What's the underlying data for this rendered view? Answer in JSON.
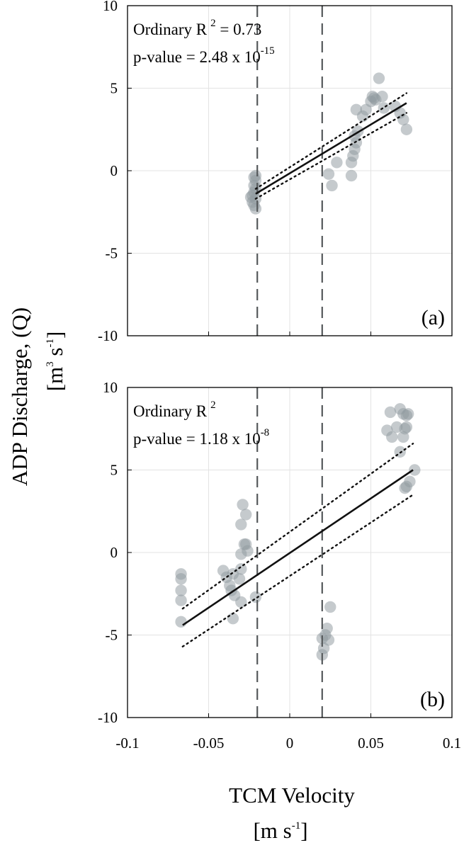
{
  "chart_data": {
    "type": "scatter",
    "xlabel": "TCM Velocity",
    "xlabel_units": "[m s-1]",
    "ylabel": "ADP Discharge, (Q)",
    "ylabel_units": "[m3 s-1]",
    "xlim": [
      -0.1,
      0.1
    ],
    "xticks": [
      -0.1,
      -0.05,
      0,
      0.05,
      0.1
    ],
    "xtick_labels": [
      "-0.1",
      "-0.05",
      "0",
      "0.05",
      "0.1"
    ],
    "panels": [
      {
        "panel_label": "(a)",
        "ylim": [
          -10,
          10
        ],
        "yticks": [
          -10,
          -5,
          0,
          5,
          10
        ],
        "ytick_labels": [
          "-10",
          "-5",
          "0",
          "5",
          "10"
        ],
        "grid": true,
        "annotation_line1": "Ordinary R",
        "annotation_line1_sup": "2",
        "annotation_line1_suffix": " = 0.73",
        "annotation_line2": "p-value = 2.48 x 10",
        "annotation_line2_sup": "-15",
        "vlines": [
          -0.02,
          0.02
        ],
        "fit": {
          "x": [
            -0.021,
            0.072
          ],
          "y": [
            -1.4,
            4.1
          ]
        },
        "ci_upper": {
          "x": [
            -0.021,
            0.072
          ],
          "y": [
            -1.1,
            4.7
          ]
        },
        "ci_lower": {
          "x": [
            -0.021,
            0.072
          ],
          "y": [
            -1.7,
            3.5
          ]
        },
        "points": [
          {
            "x": -0.022,
            "y": -0.4
          },
          {
            "x": -0.021,
            "y": -0.6
          },
          {
            "x": -0.022,
            "y": -0.9
          },
          {
            "x": -0.021,
            "y": -1.1
          },
          {
            "x": -0.022,
            "y": -1.3
          },
          {
            "x": -0.023,
            "y": -1.5
          },
          {
            "x": -0.021,
            "y": -1.7
          },
          {
            "x": -0.023,
            "y": -1.9
          },
          {
            "x": -0.022,
            "y": -2.1
          },
          {
            "x": -0.021,
            "y": -2.3
          },
          {
            "x": -0.024,
            "y": -1.6
          },
          {
            "x": -0.021,
            "y": -0.3
          },
          {
            "x": 0.024,
            "y": -0.2
          },
          {
            "x": 0.026,
            "y": -0.9
          },
          {
            "x": 0.029,
            "y": 0.5
          },
          {
            "x": 0.038,
            "y": -0.3
          },
          {
            "x": 0.038,
            "y": 0.5
          },
          {
            "x": 0.039,
            "y": 0.9
          },
          {
            "x": 0.04,
            "y": 1.3
          },
          {
            "x": 0.041,
            "y": 1.7
          },
          {
            "x": 0.04,
            "y": 2.1
          },
          {
            "x": 0.042,
            "y": 2.4
          },
          {
            "x": 0.041,
            "y": 3.7
          },
          {
            "x": 0.045,
            "y": 3.3
          },
          {
            "x": 0.047,
            "y": 3.7
          },
          {
            "x": 0.05,
            "y": 4.2
          },
          {
            "x": 0.052,
            "y": 4.4
          },
          {
            "x": 0.053,
            "y": 4.3
          },
          {
            "x": 0.055,
            "y": 5.6
          },
          {
            "x": 0.057,
            "y": 4.5
          },
          {
            "x": 0.058,
            "y": 3.8
          },
          {
            "x": 0.065,
            "y": 3.9
          },
          {
            "x": 0.068,
            "y": 3.5
          },
          {
            "x": 0.07,
            "y": 3.1
          },
          {
            "x": 0.072,
            "y": 2.5
          },
          {
            "x": 0.051,
            "y": 4.5
          }
        ]
      },
      {
        "panel_label": "(b)",
        "ylim": [
          -10,
          10
        ],
        "yticks": [
          -10,
          -5,
          0,
          5,
          10
        ],
        "ytick_labels": [
          "-10",
          "-5",
          "0",
          "5",
          "10"
        ],
        "grid": true,
        "annotation_line1": "Ordinary R",
        "annotation_line1_sup": "2",
        "annotation_line1_suffix": "",
        "annotation_line2": "p-value = 1.18 x 10",
        "annotation_line2_sup": "-8",
        "vlines": [
          -0.02,
          0.02
        ],
        "fit": {
          "x": [
            -0.066,
            0.076
          ],
          "y": [
            -4.4,
            5.0
          ]
        },
        "ci_upper": {
          "x": [
            -0.066,
            0.076
          ],
          "y": [
            -3.4,
            6.6
          ]
        },
        "ci_lower": {
          "x": [
            -0.066,
            0.076
          ],
          "y": [
            -5.7,
            3.5
          ]
        },
        "points": [
          {
            "x": -0.067,
            "y": -1.3
          },
          {
            "x": -0.067,
            "y": -1.6
          },
          {
            "x": -0.067,
            "y": -2.3
          },
          {
            "x": -0.067,
            "y": -2.9
          },
          {
            "x": -0.067,
            "y": -4.2
          },
          {
            "x": -0.041,
            "y": -1.1
          },
          {
            "x": -0.039,
            "y": -1.5
          },
          {
            "x": -0.037,
            "y": -2.0
          },
          {
            "x": -0.036,
            "y": -2.3
          },
          {
            "x": -0.035,
            "y": -1.3
          },
          {
            "x": -0.034,
            "y": -2.6
          },
          {
            "x": -0.035,
            "y": -4.0
          },
          {
            "x": -0.031,
            "y": -1.6
          },
          {
            "x": -0.03,
            "y": -1.0
          },
          {
            "x": -0.03,
            "y": -3.0
          },
          {
            "x": -0.03,
            "y": -0.1
          },
          {
            "x": -0.03,
            "y": 1.7
          },
          {
            "x": -0.029,
            "y": 2.9
          },
          {
            "x": -0.028,
            "y": 0.5
          },
          {
            "x": -0.027,
            "y": 0.5
          },
          {
            "x": -0.027,
            "y": 2.3
          },
          {
            "x": -0.026,
            "y": 0.1
          },
          {
            "x": -0.021,
            "y": -2.7
          },
          {
            "x": 0.02,
            "y": -5.2
          },
          {
            "x": 0.02,
            "y": -6.2
          },
          {
            "x": 0.021,
            "y": -5.8
          },
          {
            "x": 0.022,
            "y": -5.0
          },
          {
            "x": 0.023,
            "y": -4.6
          },
          {
            "x": 0.024,
            "y": -5.3
          },
          {
            "x": 0.025,
            "y": -3.3
          },
          {
            "x": 0.06,
            "y": 7.4
          },
          {
            "x": 0.062,
            "y": 8.5
          },
          {
            "x": 0.063,
            "y": 7.0
          },
          {
            "x": 0.066,
            "y": 7.6
          },
          {
            "x": 0.068,
            "y": 8.7
          },
          {
            "x": 0.068,
            "y": 6.1
          },
          {
            "x": 0.07,
            "y": 8.4
          },
          {
            "x": 0.07,
            "y": 7.0
          },
          {
            "x": 0.071,
            "y": 7.5
          },
          {
            "x": 0.072,
            "y": 8.3
          },
          {
            "x": 0.072,
            "y": 7.6
          },
          {
            "x": 0.073,
            "y": 8.4
          },
          {
            "x": 0.071,
            "y": 3.9
          },
          {
            "x": 0.072,
            "y": 4.0
          },
          {
            "x": 0.074,
            "y": 4.3
          },
          {
            "x": 0.077,
            "y": 5.0
          }
        ]
      }
    ]
  },
  "ylabel_units_base": "[m",
  "ylabel_units_sup1": "3",
  "ylabel_units_mid": " s",
  "ylabel_units_sup2": "-1",
  "ylabel_units_end": "]",
  "xlabel_units_base": "[m s",
  "xlabel_units_sup": "-1",
  "xlabel_units_end": "]"
}
